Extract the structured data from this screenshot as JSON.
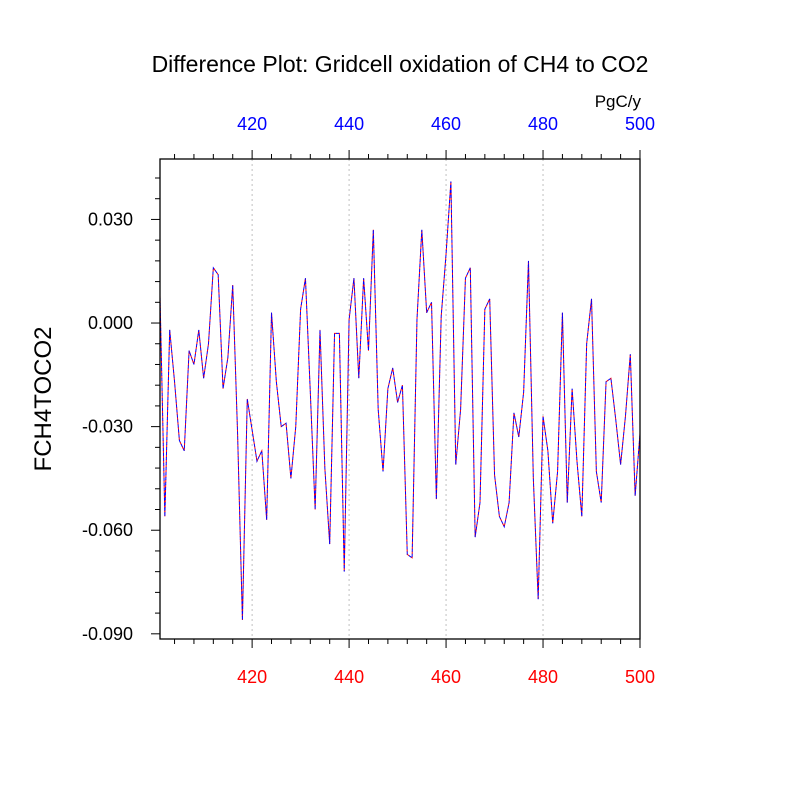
{
  "chart_data": {
    "type": "line",
    "title": "Difference Plot: Gridcell oxidation of CH4 to CO2",
    "ylabel": "FCH4TOCO2",
    "units": "PgC/y",
    "xlim": [
      401,
      500
    ],
    "ylim": [
      -0.0915,
      0.0475
    ],
    "x_ticks": [
      420,
      440,
      460,
      480,
      500
    ],
    "x_tick_labels": [
      "420",
      "440",
      "460",
      "480",
      "500"
    ],
    "y_ticks": [
      0.03,
      0.0,
      -0.03,
      -0.06,
      -0.09
    ],
    "y_tick_labels": [
      "0.030",
      "0.000",
      "-0.030",
      "-0.060",
      "-0.090"
    ],
    "x_grid": true,
    "y_grid": false,
    "colors": {
      "title": "#000000",
      "bottom_tick_labels": "#ff0000",
      "top_tick_labels": "#0000ff",
      "series_a": "#ff0000",
      "series_b": "#0000ff"
    },
    "series": [
      {
        "style": "dashed",
        "color": "#ff0000",
        "x": [
          401,
          402,
          403,
          404,
          405,
          406,
          407,
          408,
          409,
          410,
          411,
          412,
          413,
          414,
          415,
          416,
          417,
          418,
          419,
          420,
          421,
          422,
          423,
          424,
          425,
          426,
          427,
          428,
          429,
          430,
          431,
          432,
          433,
          434,
          435,
          436,
          437,
          438,
          439,
          440,
          441,
          442,
          443,
          444,
          445,
          446,
          447,
          448,
          449,
          450,
          451,
          452,
          453,
          454,
          455,
          456,
          457,
          458,
          459,
          460,
          461,
          462,
          463,
          464,
          465,
          466,
          467,
          468,
          469,
          470,
          471,
          472,
          473,
          474,
          475,
          476,
          477,
          478,
          479,
          480,
          481,
          482,
          483,
          484,
          485,
          486,
          487,
          488,
          489,
          490,
          491,
          492,
          493,
          494,
          495,
          496,
          497,
          498,
          499,
          500
        ],
        "y": [
          0.008,
          -0.056,
          -0.002,
          -0.017,
          -0.034,
          -0.037,
          -0.008,
          -0.012,
          -0.002,
          -0.016,
          -0.006,
          0.016,
          0.014,
          -0.019,
          -0.01,
          0.011,
          -0.032,
          -0.086,
          -0.022,
          -0.031,
          -0.04,
          -0.037,
          -0.057,
          0.003,
          -0.017,
          -0.03,
          -0.029,
          -0.045,
          -0.03,
          0.004,
          0.013,
          -0.02,
          -0.054,
          -0.002,
          -0.042,
          -0.064,
          -0.003,
          -0.003,
          -0.072,
          0.001,
          0.013,
          -0.016,
          0.013,
          -0.008,
          0.027,
          -0.025,
          -0.043,
          -0.019,
          -0.013,
          -0.023,
          -0.018,
          -0.067,
          -0.068,
          0.001,
          0.027,
          0.003,
          0.006,
          -0.051,
          0.002,
          0.02,
          0.041,
          -0.041,
          -0.025,
          0.013,
          0.016,
          -0.062,
          -0.052,
          0.004,
          0.007,
          -0.044,
          -0.056,
          -0.059,
          -0.052,
          -0.026,
          -0.033,
          -0.02,
          0.018,
          -0.045,
          -0.08,
          -0.027,
          -0.037,
          -0.058,
          -0.043,
          0.003,
          -0.052,
          -0.019,
          -0.04,
          -0.056,
          -0.006,
          0.007,
          -0.043,
          -0.052,
          -0.017,
          -0.016,
          -0.028,
          -0.041,
          -0.027,
          -0.009,
          -0.05,
          -0.032
        ]
      },
      {
        "style": "dashed",
        "color": "#0000ff",
        "x": [
          401,
          402,
          403,
          404,
          405,
          406,
          407,
          408,
          409,
          410,
          411,
          412,
          413,
          414,
          415,
          416,
          417,
          418,
          419,
          420,
          421,
          422,
          423,
          424,
          425,
          426,
          427,
          428,
          429,
          430,
          431,
          432,
          433,
          434,
          435,
          436,
          437,
          438,
          439,
          440,
          441,
          442,
          443,
          444,
          445,
          446,
          447,
          448,
          449,
          450,
          451,
          452,
          453,
          454,
          455,
          456,
          457,
          458,
          459,
          460,
          461,
          462,
          463,
          464,
          465,
          466,
          467,
          468,
          469,
          470,
          471,
          472,
          473,
          474,
          475,
          476,
          477,
          478,
          479,
          480,
          481,
          482,
          483,
          484,
          485,
          486,
          487,
          488,
          489,
          490,
          491,
          492,
          493,
          494,
          495,
          496,
          497,
          498,
          499,
          500
        ],
        "y": [
          0.008,
          -0.056,
          -0.002,
          -0.017,
          -0.034,
          -0.037,
          -0.008,
          -0.012,
          -0.002,
          -0.016,
          -0.006,
          0.016,
          0.014,
          -0.019,
          -0.01,
          0.011,
          -0.032,
          -0.086,
          -0.022,
          -0.031,
          -0.04,
          -0.037,
          -0.057,
          0.003,
          -0.017,
          -0.03,
          -0.029,
          -0.045,
          -0.03,
          0.004,
          0.013,
          -0.02,
          -0.054,
          -0.002,
          -0.042,
          -0.064,
          -0.003,
          -0.003,
          -0.072,
          0.001,
          0.013,
          -0.016,
          0.013,
          -0.008,
          0.027,
          -0.025,
          -0.043,
          -0.019,
          -0.013,
          -0.023,
          -0.018,
          -0.067,
          -0.068,
          0.001,
          0.027,
          0.003,
          0.006,
          -0.051,
          0.002,
          0.02,
          0.041,
          -0.041,
          -0.025,
          0.013,
          0.016,
          -0.062,
          -0.052,
          0.004,
          0.007,
          -0.044,
          -0.056,
          -0.059,
          -0.052,
          -0.026,
          -0.033,
          -0.02,
          0.018,
          -0.045,
          -0.08,
          -0.027,
          -0.037,
          -0.058,
          -0.043,
          0.003,
          -0.052,
          -0.019,
          -0.04,
          -0.056,
          -0.006,
          0.007,
          -0.043,
          -0.052,
          -0.017,
          -0.016,
          -0.028,
          -0.041,
          -0.027,
          -0.009,
          -0.05,
          -0.032
        ]
      }
    ]
  }
}
